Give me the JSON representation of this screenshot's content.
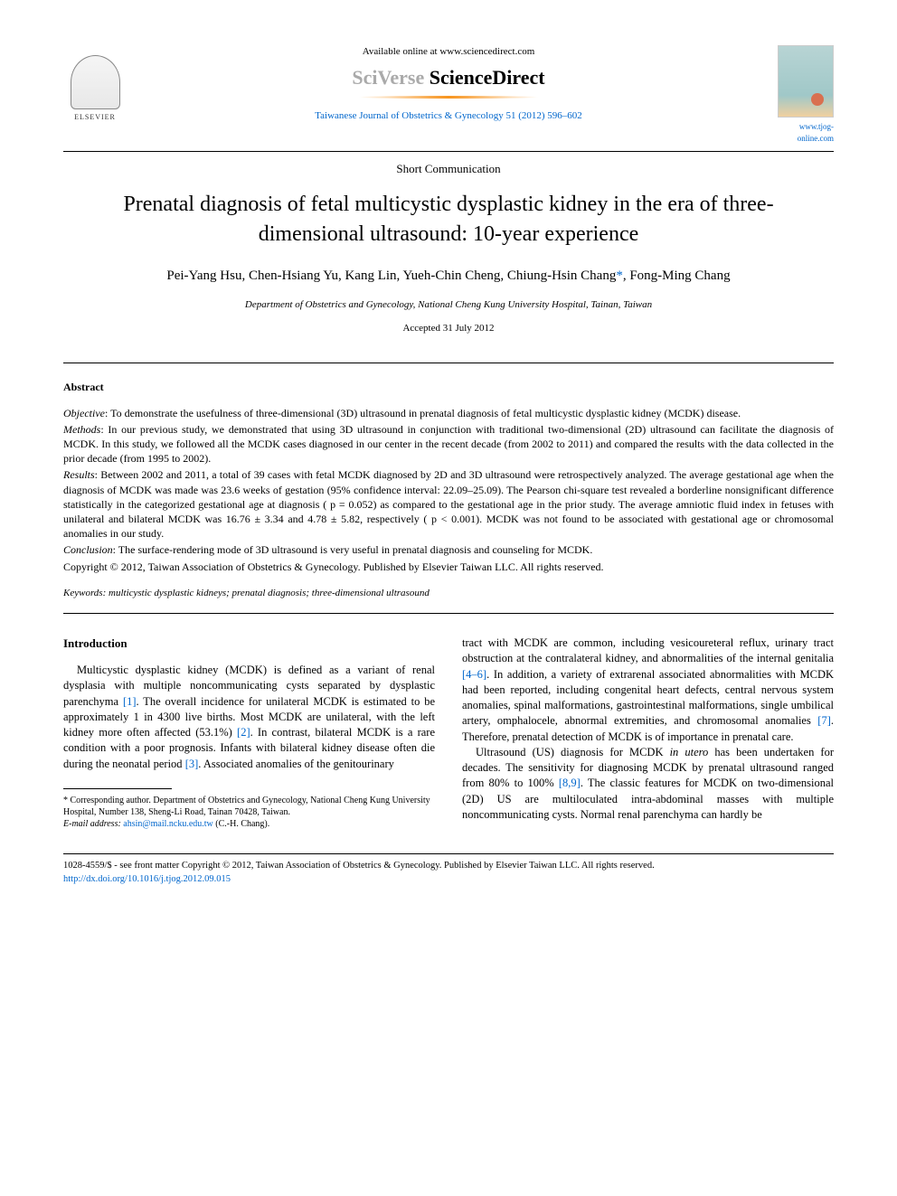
{
  "header": {
    "availableText": "Available online at ",
    "availableUrl": "www.sciencedirect.com",
    "brandGray": "SciVerse ",
    "brandBlack": "ScienceDirect",
    "journalRef": "Taiwanese Journal of Obstetrics & Gynecology 51 (2012) 596–602",
    "journalUrl": "www.tjog-online.com",
    "publisher": "ELSEVIER"
  },
  "article": {
    "type": "Short Communication",
    "title": "Prenatal diagnosis of fetal multicystic dysplastic kidney in the era of three-dimensional ultrasound: 10-year experience",
    "authors": "Pei-Yang Hsu, Chen-Hsiang Yu, Kang Lin, Yueh-Chin Cheng, Chiung-Hsin Chang",
    "authorsLast": ", Fong-Ming Chang",
    "corStar": "*",
    "affiliation": "Department of Obstetrics and Gynecology, National Cheng Kung University Hospital, Tainan, Taiwan",
    "accepted": "Accepted 31 July 2012"
  },
  "abstract": {
    "heading": "Abstract",
    "objectiveLabel": "Objective",
    "objective": ": To demonstrate the usefulness of three-dimensional (3D) ultrasound in prenatal diagnosis of fetal multicystic dysplastic kidney (MCDK) disease.",
    "methodsLabel": "Methods",
    "methods": ": In our previous study, we demonstrated that using 3D ultrasound in conjunction with traditional two-dimensional (2D) ultrasound can facilitate the diagnosis of MCDK. In this study, we followed all the MCDK cases diagnosed in our center in the recent decade (from 2002 to 2011) and compared the results with the data collected in the prior decade (from 1995 to 2002).",
    "resultsLabel": "Results",
    "results": ": Between 2002 and 2011, a total of 39 cases with fetal MCDK diagnosed by 2D and 3D ultrasound were retrospectively analyzed. The average gestational age when the diagnosis of MCDK was made was 23.6 weeks of gestation (95% confidence interval: 22.09–25.09). The Pearson chi-square test revealed a borderline nonsignificant difference statistically in the categorized gestational age at diagnosis ( p = 0.052) as compared to the gestational age in the prior study. The average amniotic fluid index in fetuses with unilateral and bilateral MCDK was 16.76 ± 3.34 and 4.78 ± 5.82, respectively ( p < 0.001). MCDK was not found to be associated with gestational age or chromosomal anomalies in our study.",
    "conclusionLabel": "Conclusion",
    "conclusion": ": The surface-rendering mode of 3D ultrasound is very useful in prenatal diagnosis and counseling for MCDK.",
    "copyright": "Copyright © 2012, Taiwan Association of Obstetrics & Gynecology. Published by Elsevier Taiwan LLC. All rights reserved."
  },
  "keywords": {
    "label": "Keywords:",
    "text": " multicystic dysplastic kidneys; prenatal diagnosis; three-dimensional ultrasound"
  },
  "intro": {
    "heading": "Introduction",
    "col1p1a": "Multicystic dysplastic kidney (MCDK) is defined as a variant of renal dysplasia with multiple noncommunicating cysts separated by dysplastic parenchyma ",
    "ref1": "[1]",
    "col1p1b": ". The overall incidence for unilateral MCDK is estimated to be approximately 1 in 4300 live births. Most MCDK are unilateral, with the left kidney more often affected (53.1%) ",
    "ref2": "[2]",
    "col1p1c": ". In contrast, bilateral MCDK is a rare condition with a poor prognosis. Infants with bilateral kidney disease often die during the neonatal period ",
    "ref3": "[3]",
    "col1p1d": ". Associated anomalies of the genitourinary",
    "col2p1a": "tract with MCDK are common, including vesicoureteral reflux, urinary tract obstruction at the contralateral kidney, and abnormalities of the internal genitalia ",
    "ref46": "[4–6]",
    "col2p1b": ". In addition, a variety of extrarenal associated abnormalities with MCDK had been reported, including congenital heart defects, central nervous system anomalies, spinal malformations, gastrointestinal malformations, single umbilical artery, omphalocele, abnormal extremities, and chromosomal anomalies ",
    "ref7": "[7]",
    "col2p1c": ". Therefore, prenatal detection of MCDK is of importance in prenatal care.",
    "col2p2a": "Ultrasound (US) diagnosis for MCDK ",
    "col2p2ital": "in utero",
    "col2p2b": " has been undertaken for decades. The sensitivity for diagnosing MCDK by prenatal ultrasound ranged from 80% to 100% ",
    "ref89": "[8,9]",
    "col2p2c": ". The classic features for MCDK on two-dimensional (2D) US are multiloculated intra-abdominal masses with multiple noncommunicating cysts. Normal renal parenchyma can hardly be"
  },
  "footnote": {
    "corresponding": "* Corresponding author. Department of Obstetrics and Gynecology, National Cheng Kung University Hospital, Number 138, Sheng-Li Road, Tainan 70428, Taiwan.",
    "emailLabel": "E-mail address:",
    "email": " ahsin@mail.ncku.edu.tw",
    "emailSuffix": " (C.-H. Chang)."
  },
  "footer": {
    "issn": "1028-4559/$ - see front matter Copyright © 2012, Taiwan Association of Obstetrics & Gynecology. Published by Elsevier Taiwan LLC. All rights reserved.",
    "doi": "http://dx.doi.org/10.1016/j.tjog.2012.09.015"
  },
  "colors": {
    "link": "#0066cc",
    "swoosh": "#f7941e"
  }
}
